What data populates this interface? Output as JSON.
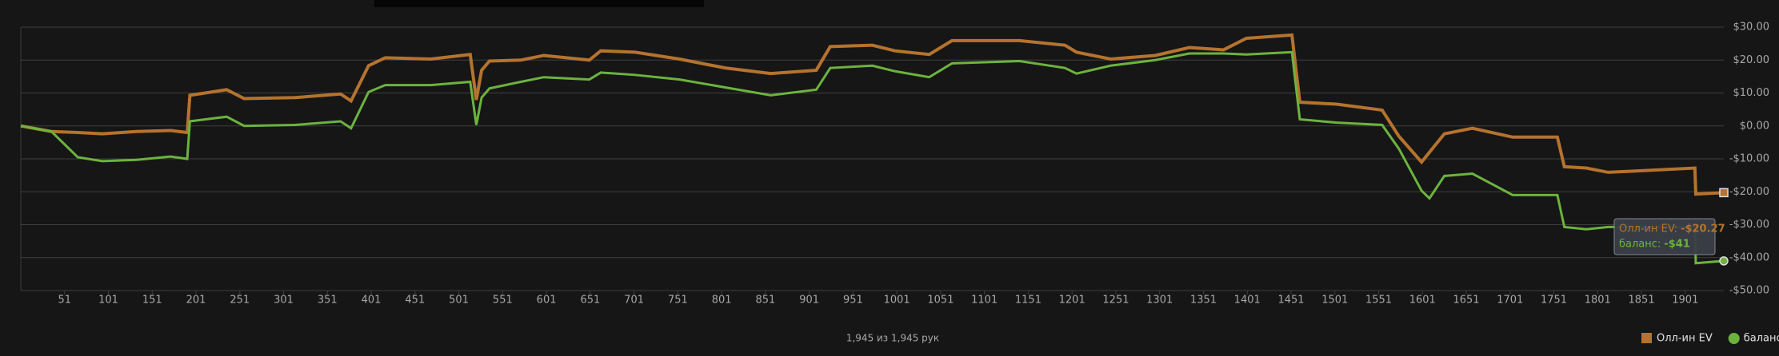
{
  "chart_data": {
    "type": "line",
    "x": [
      1,
      36,
      66,
      94,
      133,
      172,
      191,
      194,
      236,
      256,
      314,
      366,
      378,
      398,
      417,
      469,
      514,
      521,
      527,
      536,
      572,
      598,
      650,
      663,
      702,
      753,
      805,
      857,
      909,
      925,
      973,
      999,
      1038,
      1064,
      1141,
      1193,
      1206,
      1245,
      1296,
      1335,
      1374,
      1400,
      1452,
      1461,
      1503,
      1555,
      1574,
      1600,
      1609,
      1626,
      1658,
      1704,
      1755,
      1763,
      1788,
      1813,
      1912,
      1913,
      1945
    ],
    "series": [
      {
        "name": "Олл-ин EV",
        "color": "#b5732e",
        "values": [
          0,
          -1.7,
          -2,
          -2.4,
          -1.7,
          -1.4,
          -2,
          9.3,
          11,
          8.3,
          8.6,
          9.7,
          7.6,
          18.3,
          20.7,
          20.3,
          21.7,
          7.9,
          16.9,
          19.7,
          20,
          21.4,
          20,
          22.8,
          22.4,
          20.3,
          17.6,
          15.9,
          16.9,
          24.1,
          24.5,
          22.8,
          21.7,
          25.9,
          25.9,
          24.5,
          22.4,
          20.3,
          21.4,
          23.8,
          23.1,
          26.6,
          27.6,
          7.2,
          6.6,
          4.8,
          -3.1,
          -11,
          -8,
          -2.4,
          -0.7,
          -3.4,
          -3.4,
          -12.4,
          -12.8,
          -14.1,
          -12.8,
          -20.7,
          -20.27
        ]
      },
      {
        "name": "баланс",
        "color": "#6cb33e",
        "values": [
          0,
          -1.7,
          -9.5,
          -10.7,
          -10.3,
          -9.3,
          -10,
          1.4,
          2.8,
          0,
          0.3,
          1.4,
          -0.7,
          10.3,
          12.4,
          12.4,
          13.4,
          0.3,
          8.6,
          11.4,
          13.4,
          14.8,
          14.1,
          16.2,
          15.5,
          14.1,
          11.7,
          9.3,
          11,
          17.6,
          18.3,
          16.6,
          14.8,
          19,
          19.7,
          17.6,
          15.9,
          18.3,
          20,
          22,
          22,
          21.7,
          22.4,
          2,
          1,
          0.3,
          -6.9,
          -19.7,
          -22,
          -15.2,
          -14.5,
          -21,
          -21,
          -30.7,
          -31.4,
          -30.7,
          -30.7,
          -41.7,
          -41
        ]
      }
    ],
    "xlim": [
      1,
      1945
    ],
    "xticks": [
      51,
      101,
      151,
      201,
      251,
      301,
      351,
      401,
      451,
      501,
      551,
      601,
      651,
      701,
      751,
      801,
      851,
      901,
      951,
      1001,
      1051,
      1101,
      1151,
      1201,
      1251,
      1301,
      1351,
      1401,
      1451,
      1501,
      1551,
      1601,
      1651,
      1701,
      1751,
      1801,
      1851,
      1901
    ],
    "ylim": [
      -50,
      30
    ],
    "yticks": [
      {
        "value": 30,
        "label": "$30.00"
      },
      {
        "value": 20,
        "label": "$20.00"
      },
      {
        "value": 10,
        "label": "$10.00"
      },
      {
        "value": 0,
        "label": "$0.00"
      },
      {
        "value": -10,
        "label": "-$10.00"
      },
      {
        "value": -20,
        "label": "-$20.00"
      },
      {
        "value": -30,
        "label": "-$30.00"
      },
      {
        "value": -40,
        "label": "-$40.00"
      },
      {
        "value": -50,
        "label": "-$50.00"
      }
    ],
    "grid": true,
    "legend": "bottom-right",
    "footer": "1,945 из 1,945 рук",
    "tooltip": [
      {
        "label": "Олл-ин EV:",
        "value": "-$20.27"
      },
      {
        "label": "баланс:",
        "value": "-$41"
      }
    ]
  }
}
